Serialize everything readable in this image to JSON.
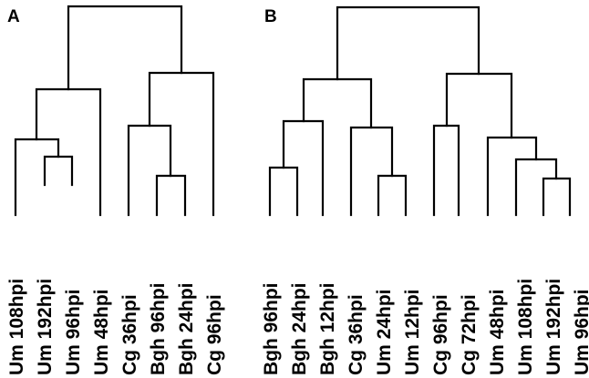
{
  "colors": {
    "line": "#000000",
    "background": "#ffffff",
    "text": "#000000"
  },
  "panels": [
    {
      "letter": "A",
      "leaves": [
        "Um 108hpi",
        "Um 192hpi",
        "Um 96hpi",
        "Um 48hpi",
        "Cg 36hpi",
        "Bgh 96hpi",
        "Bgh 24hpi",
        "Cg 96hpi"
      ]
    },
    {
      "letter": "B",
      "leaves": [
        "Bgh 96hpi",
        "Bgh 24hpi",
        "Bgh 12hpi",
        "Cg 36hpi",
        "Um 24hpi",
        "Um 12hpi",
        "Cg 96hpi",
        "Cg 72hpi",
        "Um 48hpi",
        "Um 108hpi",
        "Um 192hpi",
        "Um 96hpi"
      ]
    }
  ]
}
